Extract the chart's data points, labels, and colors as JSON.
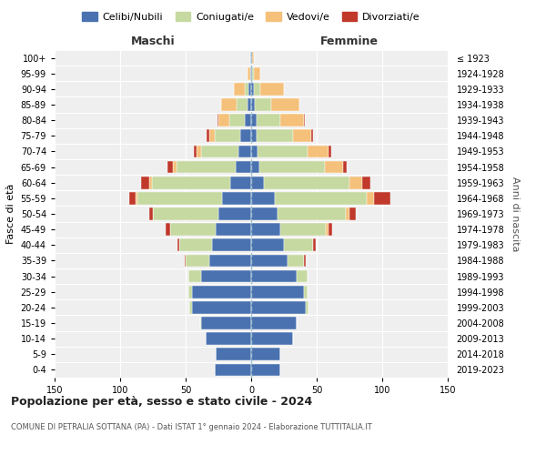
{
  "age_groups": [
    "0-4",
    "5-9",
    "10-14",
    "15-19",
    "20-24",
    "25-29",
    "30-34",
    "35-39",
    "40-44",
    "45-49",
    "50-54",
    "55-59",
    "60-64",
    "65-69",
    "70-74",
    "75-79",
    "80-84",
    "85-89",
    "90-94",
    "95-99",
    "100+"
  ],
  "birth_years": [
    "2019-2023",
    "2014-2018",
    "2009-2013",
    "2004-2008",
    "1999-2003",
    "1994-1998",
    "1989-1993",
    "1984-1988",
    "1979-1983",
    "1974-1978",
    "1969-1973",
    "1964-1968",
    "1959-1963",
    "1954-1958",
    "1949-1953",
    "1944-1948",
    "1939-1943",
    "1934-1938",
    "1929-1933",
    "1924-1928",
    "≤ 1923"
  ],
  "colors": {
    "celibi": "#4a72b0",
    "coniugati": "#c5d9a0",
    "vedovi": "#f5c07a",
    "divorziati": "#c0392b"
  },
  "maschi": {
    "celibi": [
      28,
      27,
      35,
      38,
      45,
      45,
      38,
      32,
      30,
      27,
      25,
      22,
      16,
      12,
      10,
      8,
      5,
      3,
      2,
      1,
      1
    ],
    "coniugati": [
      0,
      0,
      0,
      1,
      2,
      3,
      10,
      18,
      25,
      35,
      50,
      65,
      60,
      45,
      28,
      20,
      12,
      8,
      3,
      0,
      0
    ],
    "vedovi": [
      0,
      0,
      0,
      0,
      0,
      0,
      0,
      0,
      0,
      0,
      0,
      1,
      2,
      3,
      4,
      4,
      8,
      12,
      8,
      2,
      0
    ],
    "divorziati": [
      0,
      0,
      0,
      0,
      0,
      0,
      0,
      1,
      1,
      3,
      3,
      5,
      6,
      4,
      2,
      2,
      1,
      0,
      0,
      0,
      0
    ]
  },
  "femmine": {
    "celibi": [
      22,
      22,
      32,
      35,
      42,
      40,
      35,
      28,
      25,
      22,
      20,
      18,
      10,
      6,
      5,
      4,
      4,
      3,
      2,
      1,
      1
    ],
    "coniugati": [
      0,
      0,
      0,
      0,
      2,
      3,
      8,
      12,
      22,
      35,
      52,
      70,
      65,
      50,
      38,
      28,
      18,
      12,
      5,
      1,
      0
    ],
    "vedovi": [
      0,
      0,
      0,
      0,
      0,
      0,
      0,
      0,
      0,
      2,
      3,
      6,
      10,
      14,
      16,
      14,
      18,
      22,
      18,
      5,
      1
    ],
    "divorziati": [
      0,
      0,
      0,
      0,
      0,
      0,
      0,
      2,
      2,
      3,
      5,
      12,
      6,
      3,
      2,
      1,
      1,
      0,
      0,
      0,
      0
    ]
  },
  "title": "Popolazione per età, sesso e stato civile - 2024",
  "subtitle": "COMUNE DI PETRALIA SOTTANA (PA) - Dati ISTAT 1° gennaio 2024 - Elaborazione TUTTITALIA.IT",
  "xlabel_left": "Maschi",
  "xlabel_right": "Femmine",
  "ylabel": "Fasce di età",
  "ylabel_right": "Anni di nascita",
  "legend_labels": [
    "Celibi/Nubili",
    "Coniugati/e",
    "Vedovi/e",
    "Divorziati/e"
  ],
  "xlim": 150,
  "background_color": "#ffffff"
}
